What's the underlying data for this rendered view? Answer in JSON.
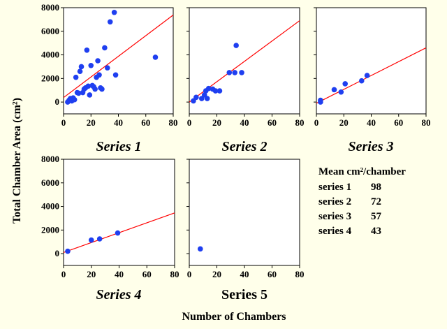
{
  "chart_data": {
    "type": "scatter",
    "ylabel": "Total Chamber Area (cm²)",
    "xlabel": "Number of Chambers",
    "xlim": [
      0,
      80
    ],
    "ylim": [
      -1000,
      8000
    ],
    "xticks": [
      0,
      20,
      40,
      60,
      80
    ],
    "yticks": [
      0,
      2000,
      4000,
      6000,
      8000
    ],
    "tick_labels_x": [
      "0",
      "20",
      "40",
      "60",
      "80"
    ],
    "tick_labels_y": [
      "0",
      "2000",
      "4000",
      "6000",
      "8000"
    ],
    "point_color": "#1f3ff0",
    "line_color": "#ff0000",
    "panels": [
      {
        "title": "Series 1",
        "italic": true,
        "show_x_ticks": true,
        "show_y_ticks": true,
        "points": [
          [
            3,
            0
          ],
          [
            4,
            150
          ],
          [
            5,
            300
          ],
          [
            6,
            100
          ],
          [
            7,
            350
          ],
          [
            8,
            200
          ],
          [
            9,
            2100
          ],
          [
            10,
            800
          ],
          [
            11,
            750
          ],
          [
            12,
            2600
          ],
          [
            13,
            3000
          ],
          [
            14,
            800
          ],
          [
            15,
            1100
          ],
          [
            16,
            1200
          ],
          [
            17,
            4400
          ],
          [
            18,
            1350
          ],
          [
            19,
            600
          ],
          [
            20,
            3100
          ],
          [
            21,
            1400
          ],
          [
            22,
            1300
          ],
          [
            23,
            1100
          ],
          [
            24,
            2100
          ],
          [
            25,
            3500
          ],
          [
            26,
            2300
          ],
          [
            27,
            1200
          ],
          [
            28,
            1100
          ],
          [
            30,
            4600
          ],
          [
            32,
            2900
          ],
          [
            34,
            6800
          ],
          [
            37,
            7600
          ],
          [
            38,
            2300
          ],
          [
            67,
            3800
          ]
        ],
        "fit": [
          [
            0,
            380
          ],
          [
            80,
            7380
          ]
        ]
      },
      {
        "title": "Series 2",
        "italic": true,
        "show_x_ticks": true,
        "show_y_ticks": false,
        "points": [
          [
            3,
            100
          ],
          [
            5,
            400
          ],
          [
            9,
            300
          ],
          [
            11,
            600
          ],
          [
            12,
            950
          ],
          [
            13,
            300
          ],
          [
            14,
            1150
          ],
          [
            17,
            1100
          ],
          [
            19,
            950
          ],
          [
            22,
            950
          ],
          [
            29,
            2500
          ],
          [
            33,
            2500
          ],
          [
            34,
            4800
          ],
          [
            38,
            2500
          ]
        ],
        "fit": [
          [
            0,
            0
          ],
          [
            80,
            6900
          ]
        ]
      },
      {
        "title": "Series 3",
        "italic": true,
        "show_x_ticks": true,
        "show_y_ticks": false,
        "points": [
          [
            3,
            0
          ],
          [
            3,
            150
          ],
          [
            13,
            1050
          ],
          [
            18,
            850
          ],
          [
            21,
            1550
          ],
          [
            33,
            1800
          ],
          [
            37,
            2250
          ]
        ],
        "fit": [
          [
            0,
            -100
          ],
          [
            80,
            4600
          ]
        ]
      },
      {
        "title": "Series 4",
        "italic": true,
        "show_x_ticks": true,
        "show_y_ticks": true,
        "points": [
          [
            3,
            200
          ],
          [
            20,
            1150
          ],
          [
            26,
            1250
          ],
          [
            39,
            1750
          ]
        ],
        "fit": [
          [
            0,
            100
          ],
          [
            80,
            3450
          ]
        ]
      },
      {
        "title": "Series 5",
        "italic": false,
        "show_x_ticks": true,
        "show_y_ticks": false,
        "points": [
          [
            8,
            400
          ]
        ],
        "fit": null
      }
    ],
    "legend": {
      "title": "Mean cm²/chamber",
      "rows": [
        {
          "series": "series 1",
          "value": "98"
        },
        {
          "series": "series 2",
          "value": "72"
        },
        {
          "series": "series 3",
          "value": "57"
        },
        {
          "series": "series 4",
          "value": "43"
        }
      ]
    }
  }
}
